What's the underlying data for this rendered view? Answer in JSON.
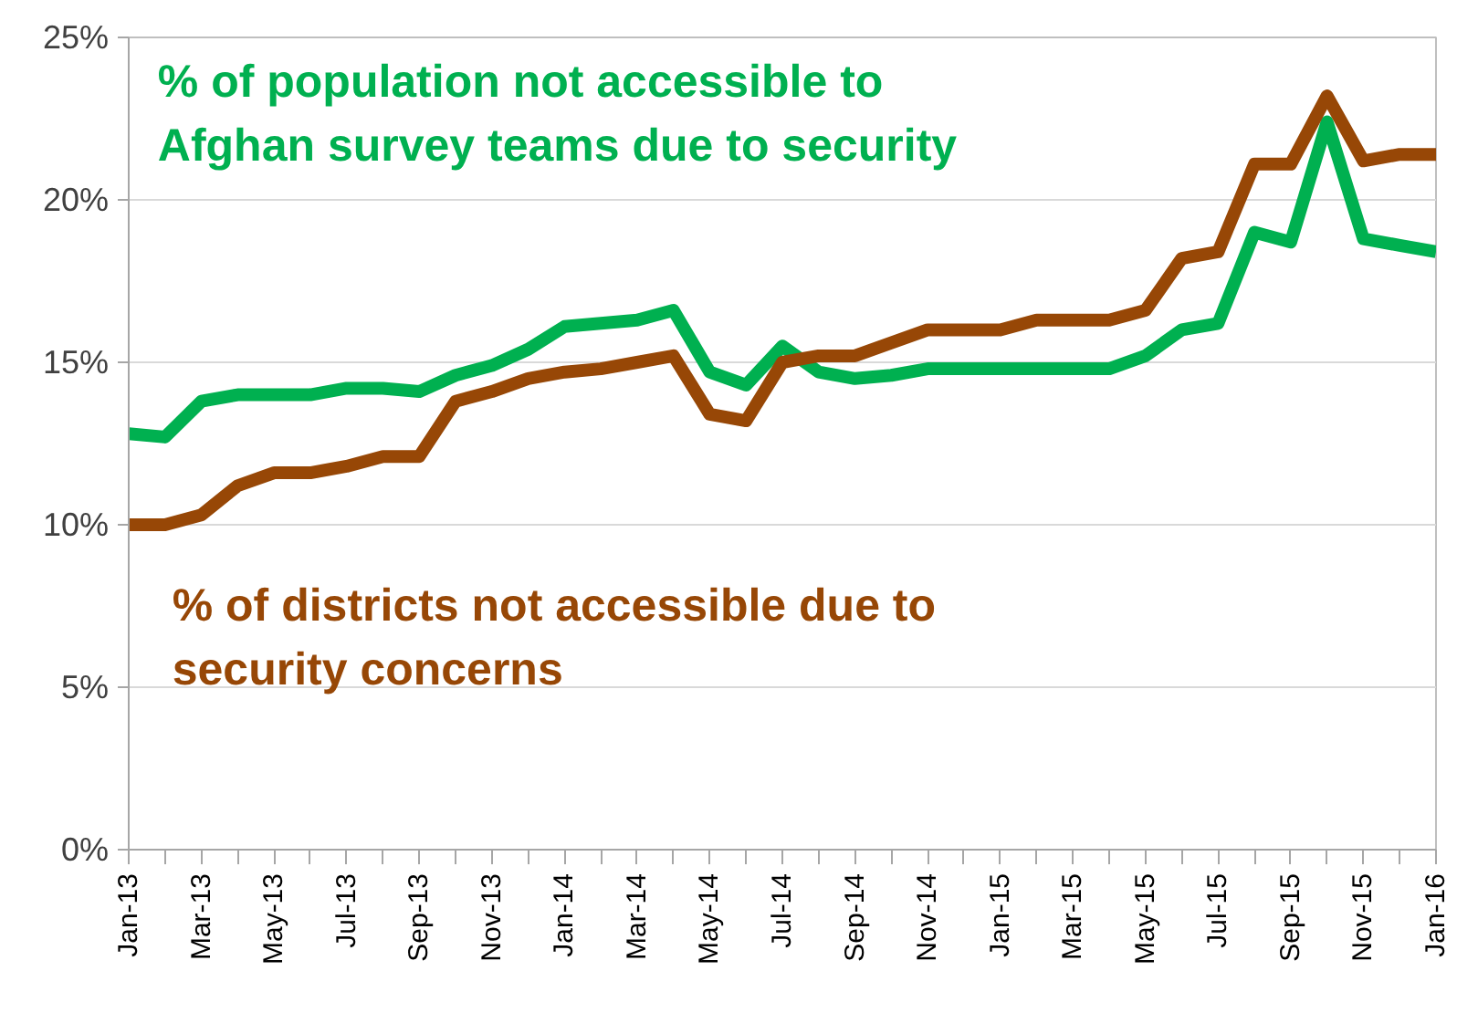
{
  "chart_data": {
    "type": "line",
    "categories": [
      "Jan-13",
      null,
      "Mar-13",
      null,
      "May-13",
      null,
      "Jul-13",
      null,
      "Sep-13",
      null,
      "Nov-13",
      null,
      "Jan-14",
      null,
      "Mar-14",
      null,
      "May-14",
      null,
      "Jul-14",
      null,
      "Sep-14",
      null,
      "Nov-14",
      null,
      "Jan-15",
      null,
      "Mar-15",
      null,
      "May-15",
      null,
      "Jul-15",
      null,
      "Sep-15",
      null,
      "Nov-15",
      null,
      "Jan-16"
    ],
    "series": [
      {
        "name": "% of population not accessible to Afghan survey teams due to security",
        "color": "#00b050",
        "values": [
          12.8,
          12.7,
          13.8,
          14.0,
          14.0,
          14.0,
          14.2,
          14.2,
          14.1,
          14.6,
          14.9,
          15.4,
          16.1,
          16.2,
          16.3,
          16.6,
          14.7,
          14.3,
          15.5,
          14.7,
          14.5,
          14.6,
          14.8,
          14.8,
          14.8,
          14.8,
          14.8,
          14.8,
          15.2,
          16.0,
          16.2,
          19.0,
          18.7,
          22.4,
          18.8,
          18.6,
          18.4
        ]
      },
      {
        "name": "% of districts not accessible due to security concerns",
        "color": "#974706",
        "values": [
          10.0,
          10.0,
          10.3,
          11.2,
          11.6,
          11.6,
          11.8,
          12.1,
          12.1,
          13.8,
          14.1,
          14.5,
          14.7,
          14.8,
          15.0,
          15.2,
          13.4,
          13.2,
          15.0,
          15.2,
          15.2,
          15.6,
          16.0,
          16.0,
          16.0,
          16.3,
          16.3,
          16.3,
          16.6,
          18.2,
          18.4,
          21.1,
          21.1,
          23.2,
          21.2,
          21.4,
          21.4
        ]
      }
    ],
    "ylim": [
      0,
      25
    ],
    "yticks": [
      {
        "value": 0,
        "label": "0%"
      },
      {
        "value": 5,
        "label": "5%"
      },
      {
        "value": 10,
        "label": "10%"
      },
      {
        "value": 15,
        "label": "15%"
      },
      {
        "value": 20,
        "label": "20%"
      },
      {
        "value": 25,
        "label": "25%"
      }
    ],
    "grid": "y",
    "line_style": "solid",
    "marker": "none"
  }
}
